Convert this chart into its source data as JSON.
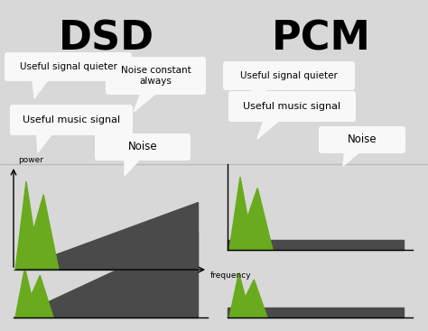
{
  "bg_color": "#d8d8d8",
  "green_color": "#6aaa1e",
  "dark_color": "#4a4a4a",
  "white_color": "#f8f8f8",
  "title_dsd": "DSD",
  "title_pcm": "PCM",
  "label_power": "power",
  "label_frequency": "frequency",
  "callout_useful_music": "Useful music signal",
  "callout_noise_dsd": "Noise",
  "callout_useful_quieter_dsd": "Useful signal quieter",
  "callout_noise_constant": "Noise constant\nalways",
  "callout_useful_quieter_pcm": "Useful signal quieter",
  "callout_noise_pcm": "Noise"
}
